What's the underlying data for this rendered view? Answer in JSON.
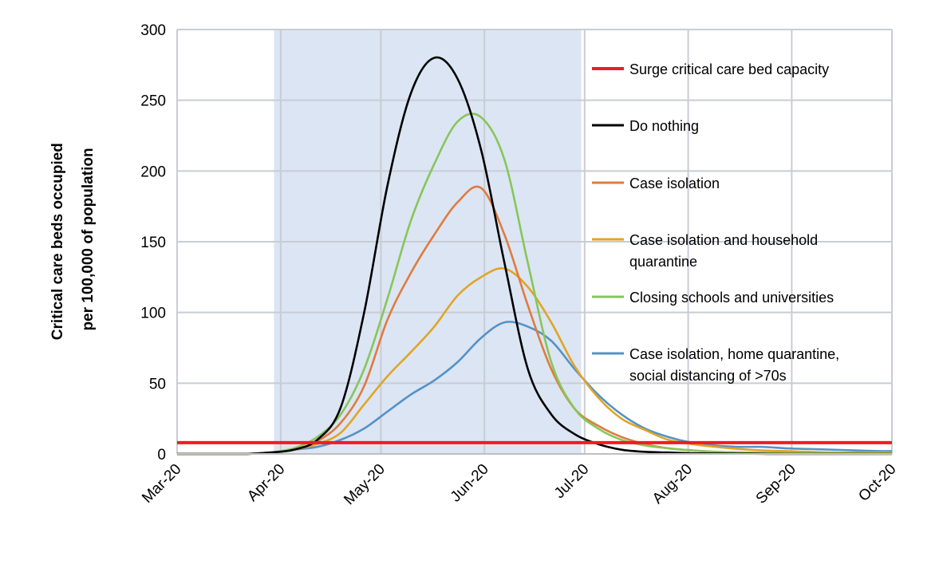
{
  "chart_data": {
    "type": "line",
    "title": "",
    "ylabel_lines": [
      "Critical care beds occupied",
      "per 100,000 of population"
    ],
    "xlabel": "",
    "ylim": [
      0,
      300
    ],
    "yticks": [
      0,
      50,
      100,
      150,
      200,
      250,
      300
    ],
    "xlim": [
      "2020-03-01",
      "2020-10-01"
    ],
    "xticks": [
      {
        "date": "2020-03-01",
        "label": "Mar-20"
      },
      {
        "date": "2020-04-01",
        "label": "Apr-20"
      },
      {
        "date": "2020-05-01",
        "label": "May-20"
      },
      {
        "date": "2020-06-01",
        "label": "Jun-20"
      },
      {
        "date": "2020-07-01",
        "label": "Jul-20"
      },
      {
        "date": "2020-08-01",
        "label": "Aug-20"
      },
      {
        "date": "2020-09-01",
        "label": "Sep-20"
      },
      {
        "date": "2020-10-01",
        "label": "Oct-20"
      }
    ],
    "grid": true,
    "legend_placement": "right-inside",
    "shaded_period": {
      "start": "2020-03-30",
      "end": "2020-06-30",
      "color": "#dce5f3"
    },
    "surge_capacity": {
      "name": "Surge critical care bed capacity",
      "value": 8,
      "color": "#ee1c25"
    },
    "x": [
      "2020-03-01",
      "2020-03-08",
      "2020-03-15",
      "2020-03-22",
      "2020-03-29",
      "2020-04-05",
      "2020-04-12",
      "2020-04-19",
      "2020-04-26",
      "2020-05-03",
      "2020-05-10",
      "2020-05-17",
      "2020-05-24",
      "2020-05-31",
      "2020-06-07",
      "2020-06-14",
      "2020-06-21",
      "2020-06-28",
      "2020-07-05",
      "2020-07-12",
      "2020-07-19",
      "2020-07-26",
      "2020-08-02",
      "2020-08-09",
      "2020-08-16",
      "2020-08-23",
      "2020-08-30",
      "2020-09-06",
      "2020-09-13",
      "2020-09-20",
      "2020-09-27",
      "2020-10-01"
    ],
    "series": [
      {
        "name": "Do nothing",
        "color": "#000000",
        "values": [
          0,
          0,
          0,
          0,
          1,
          3,
          10,
          33,
          100,
          190,
          255,
          280,
          265,
          215,
          135,
          60,
          28,
          14,
          7,
          3,
          1.5,
          1,
          0.5,
          0.3,
          0.2,
          0.1,
          0,
          0,
          0,
          0,
          0,
          0
        ]
      },
      {
        "name": "Case isolation",
        "color": "#e07b3e",
        "values": [
          0,
          0,
          0,
          0,
          1,
          3,
          9,
          22,
          48,
          95,
          128,
          155,
          178,
          188,
          155,
          105,
          60,
          32,
          20,
          12,
          7,
          4,
          2.5,
          1.5,
          1,
          0.8,
          0.6,
          0.5,
          0.4,
          0.3,
          0.3,
          0.3
        ]
      },
      {
        "name": "Case isolation and household quarantine",
        "color": "#e0a526",
        "values": [
          0,
          0,
          0,
          0,
          1,
          3,
          7,
          15,
          35,
          55,
          72,
          90,
          112,
          125,
          131,
          118,
          93,
          62,
          40,
          25,
          17,
          10,
          7,
          5,
          3.5,
          2.5,
          2,
          1.5,
          1,
          1,
          1,
          1
        ]
      },
      {
        "name": "Closing schools and universities",
        "color": "#86c65a",
        "values": [
          0,
          0,
          0,
          0,
          1,
          4,
          12,
          28,
          60,
          110,
          165,
          205,
          235,
          238,
          208,
          135,
          65,
          32,
          18,
          10,
          6,
          4,
          2.5,
          1.5,
          1,
          0.7,
          0.5,
          0.5,
          0.4,
          0.3,
          0.3,
          0.3
        ]
      },
      {
        "name": "Case isolation, home quarantine, social distancing of >70s",
        "color": "#5592c8",
        "values": [
          0,
          0,
          0,
          0,
          1,
          3,
          5,
          10,
          18,
          30,
          42,
          52,
          65,
          82,
          93,
          90,
          80,
          60,
          42,
          28,
          18,
          12,
          8,
          6,
          5,
          5,
          4,
          3.5,
          3,
          2.5,
          2,
          2
        ]
      }
    ],
    "legend": [
      {
        "lines": [
          "Surge critical care bed capacity"
        ],
        "color": "#ee1c25"
      },
      {
        "lines": [
          "Do nothing"
        ],
        "color": "#000000"
      },
      {
        "lines": [
          "Case isolation"
        ],
        "color": "#e07b3e"
      },
      {
        "lines": [
          "Case isolation and household",
          "quarantine"
        ],
        "color": "#e0a526"
      },
      {
        "lines": [
          "Closing schools and universities"
        ],
        "color": "#86c65a"
      },
      {
        "lines": [
          "Case isolation, home quarantine,",
          "social distancing of >70s"
        ],
        "color": "#5592c8"
      }
    ]
  }
}
